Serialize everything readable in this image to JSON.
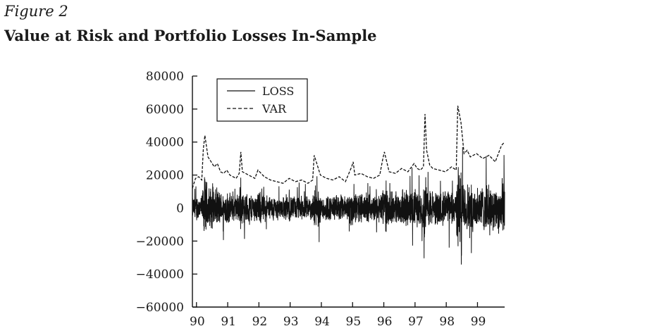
{
  "figure": {
    "label": "Figure 2",
    "title": "Value at Risk and Portfolio Losses In-Sample"
  },
  "chart_data": {
    "type": "line",
    "title": "Value at Risk and Portfolio Losses In-Sample",
    "xlabel": "",
    "ylabel": "",
    "x_tick_labels": [
      "90",
      "91",
      "92",
      "93",
      "94",
      "95",
      "96",
      "97",
      "98",
      "99"
    ],
    "y_ticks": [
      80000,
      60000,
      40000,
      20000,
      0,
      -20000,
      -40000,
      -60000
    ],
    "y_tick_labels": [
      "80000",
      "60000",
      "40000",
      "20000",
      "0",
      "−20000",
      "−40000",
      "−60000"
    ],
    "xlim": [
      1989.9,
      1999.9
    ],
    "ylim": [
      -60000,
      80000
    ],
    "grid": false,
    "legend_position": "top-left",
    "series": [
      {
        "name": "VAR",
        "style": "dashed",
        "x": [
          1989.9,
          1990.0,
          1990.1,
          1990.2,
          1990.25,
          1990.3,
          1990.4,
          1990.5,
          1990.6,
          1990.7,
          1990.8,
          1990.9,
          1991.0,
          1991.1,
          1991.2,
          1991.3,
          1991.4,
          1991.45,
          1991.5,
          1991.6,
          1991.7,
          1991.8,
          1991.9,
          1992.0,
          1992.2,
          1992.4,
          1992.6,
          1992.8,
          1993.0,
          1993.2,
          1993.4,
          1993.6,
          1993.75,
          1993.8,
          1993.9,
          1994.0,
          1994.2,
          1994.4,
          1994.6,
          1994.8,
          1995.0,
          1995.05,
          1995.1,
          1995.3,
          1995.5,
          1995.7,
          1995.9,
          1996.0,
          1996.05,
          1996.2,
          1996.4,
          1996.6,
          1996.8,
          1997.0,
          1997.1,
          1997.2,
          1997.3,
          1997.35,
          1997.4,
          1997.5,
          1997.6,
          1997.8,
          1998.0,
          1998.2,
          1998.35,
          1998.4,
          1998.5,
          1998.6,
          1998.7,
          1998.8,
          1999.0,
          1999.2,
          1999.4,
          1999.6,
          1999.8,
          1999.9
        ],
        "y": [
          12000,
          18000,
          19000,
          17000,
          36000,
          44000,
          31000,
          28000,
          25000,
          27000,
          22000,
          21000,
          23000,
          20000,
          19000,
          18000,
          21000,
          34000,
          22000,
          21000,
          20000,
          19000,
          18000,
          23000,
          19000,
          17000,
          16000,
          15000,
          18000,
          16000,
          17000,
          15000,
          17000,
          32000,
          26000,
          20000,
          18000,
          17000,
          19000,
          16000,
          25000,
          28000,
          20000,
          21000,
          19000,
          18000,
          20000,
          30000,
          34000,
          22000,
          21000,
          24000,
          22000,
          27000,
          24000,
          23000,
          25000,
          57000,
          35000,
          26000,
          24000,
          23000,
          22000,
          25000,
          23000,
          62000,
          52000,
          33000,
          35000,
          31000,
          33000,
          30000,
          32000,
          28000,
          38000,
          40000
        ]
      },
      {
        "name": "LOSS",
        "style": "solid",
        "generated_noise_envelope": "0 ± ~10000, spikes up to +44000 / −40000"
      }
    ]
  }
}
